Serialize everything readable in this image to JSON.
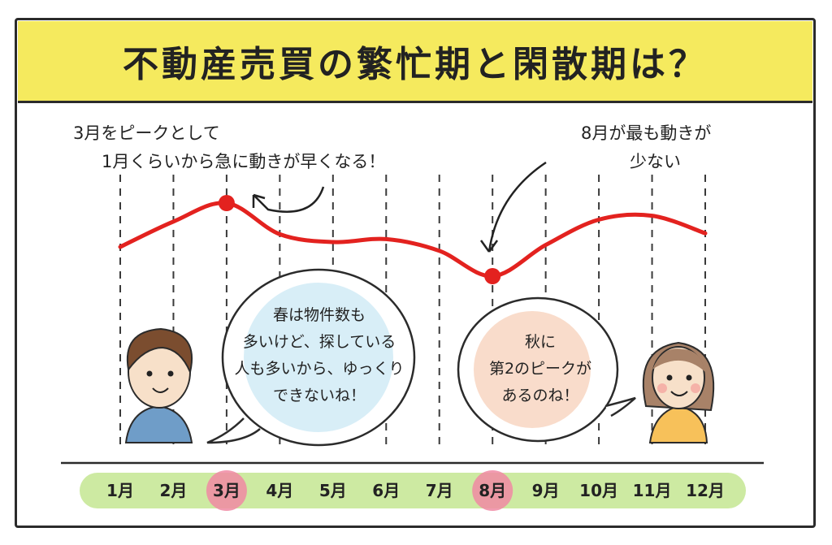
{
  "title": "不動産売買の繁忙期と閑散期は？",
  "annotations": {
    "left_line1": "3月をピークとして",
    "left_line2": "1月くらいから急に動きが早くなる！",
    "right_line1": "8月が最も動きが",
    "right_line2": "少ない"
  },
  "speech": {
    "man": [
      "春は物件数も",
      "多いけど、探している",
      "人も多いから、ゆっくり",
      "できないね！"
    ],
    "woman": [
      "秋に",
      "第2のピークが",
      "あるのね！"
    ]
  },
  "colors": {
    "title_band": "#f5ea5e",
    "line": "#e3221f",
    "peak_marker": "#e3221f",
    "axis_band": "#cdeaa2",
    "highlight_month": "#f08aa3",
    "man_bubble": "#d8eef7",
    "woman_bubble": "#f9dccb"
  },
  "chart_data": {
    "type": "line",
    "categories": [
      "1月",
      "2月",
      "3月",
      "4月",
      "5月",
      "6月",
      "7月",
      "8月",
      "9月",
      "10月",
      "11月",
      "12月"
    ],
    "values": [
      3,
      5.6,
      7.5,
      4.3,
      3.5,
      3.8,
      2.6,
      0,
      3.2,
      5.8,
      6.2,
      4.4
    ],
    "highlighted": [
      "3月",
      "8月"
    ],
    "ylim": [
      0,
      10
    ],
    "grid": "vertical dashed lines at each month"
  }
}
